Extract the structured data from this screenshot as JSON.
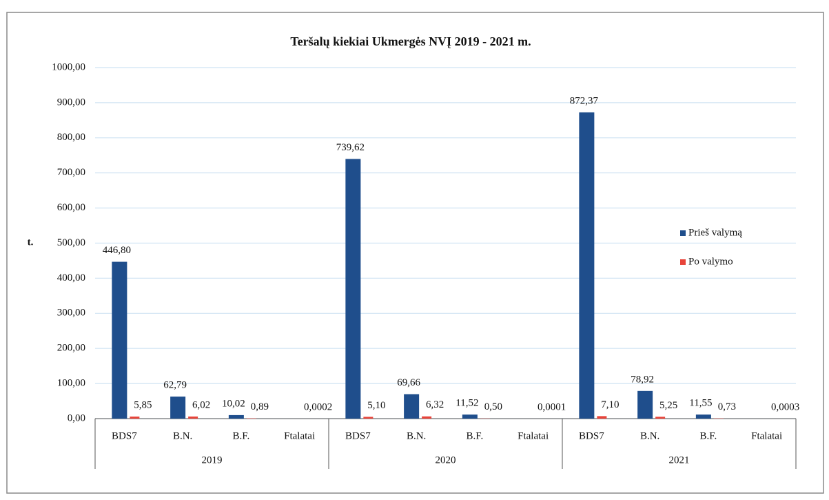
{
  "chart_data": {
    "type": "bar",
    "title": "Teršalų kiekiai Ukmergės NVĮ 2019 - 2021 m.",
    "y_label": "t.",
    "categories": [
      "BDS7",
      "B.N.",
      "B.F.",
      "Ftalatai",
      "BDS7",
      "B.N.",
      "B.F.",
      "Ftalatai",
      "BDS7",
      "B.N.",
      "B.F.",
      "Ftalatai"
    ],
    "groups": [
      "2019",
      "2020",
      "2021"
    ],
    "series": [
      {
        "name": "Prieš valymą",
        "color": "#1f4e8c",
        "values": [
          446.8,
          62.79,
          10.02,
          null,
          739.62,
          69.66,
          11.52,
          null,
          872.37,
          78.92,
          11.55,
          null
        ],
        "value_labels": [
          "446,80",
          "62,79",
          "10,02",
          null,
          "739,62",
          "69,66",
          "11,52",
          null,
          "872,37",
          "78,92",
          "11,55",
          null
        ]
      },
      {
        "name": "Po valymo",
        "color": "#e8443a",
        "values": [
          5.85,
          6.02,
          0.89,
          0.0002,
          5.1,
          6.32,
          0.5,
          0.0001,
          7.1,
          5.25,
          0.73,
          0.0003
        ],
        "value_labels": [
          "5,85",
          "6,02",
          "0,89",
          "0,0002",
          "5,10",
          "6,32",
          "0,50",
          "0,0001",
          "7,10",
          "5,25",
          "0,73",
          "0,0003"
        ]
      }
    ],
    "ylim": [
      0,
      1000
    ],
    "yticks": [
      {
        "value": 0,
        "label": "0,00"
      },
      {
        "value": 100,
        "label": "100,00"
      },
      {
        "value": 200,
        "label": "200,00"
      },
      {
        "value": 300,
        "label": "300,00"
      },
      {
        "value": 400,
        "label": "400,00"
      },
      {
        "value": 500,
        "label": "500,00"
      },
      {
        "value": 600,
        "label": "600,00"
      },
      {
        "value": 700,
        "label": "700,00"
      },
      {
        "value": 800,
        "label": "800,00"
      },
      {
        "value": 900,
        "label": "900,00"
      },
      {
        "value": 1000,
        "label": "1000,00"
      }
    ],
    "grid": true,
    "legend": "right"
  }
}
